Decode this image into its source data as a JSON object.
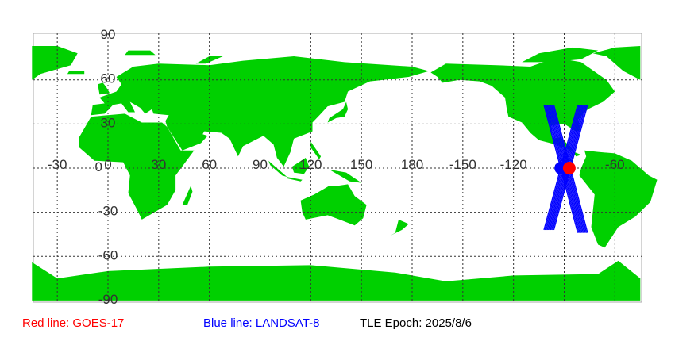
{
  "map": {
    "lon_labels": [
      "-30",
      "0",
      "30",
      "60",
      "90",
      "120",
      "150",
      "180",
      "-150",
      "-120",
      "-90",
      "-60"
    ],
    "lat_labels": [
      "90",
      "60",
      "30",
      "0",
      "-30",
      "-60",
      "-90"
    ],
    "colors": {
      "land": "#00d000",
      "grid": "#333333",
      "goes": "#ff0000",
      "landsat": "#0000ff"
    },
    "satellites": [
      {
        "name": "LANDSAT-8",
        "lon": -92,
        "lat": 0,
        "color": "#0000ff"
      },
      {
        "name": "GOES-17",
        "lon": -87,
        "lat": 0,
        "color": "#ff0000"
      }
    ]
  },
  "legend": {
    "red": "Red line: GOES-17",
    "blue": "Blue line: LANDSAT-8",
    "epoch": "TLE Epoch: 2025/8/6"
  }
}
